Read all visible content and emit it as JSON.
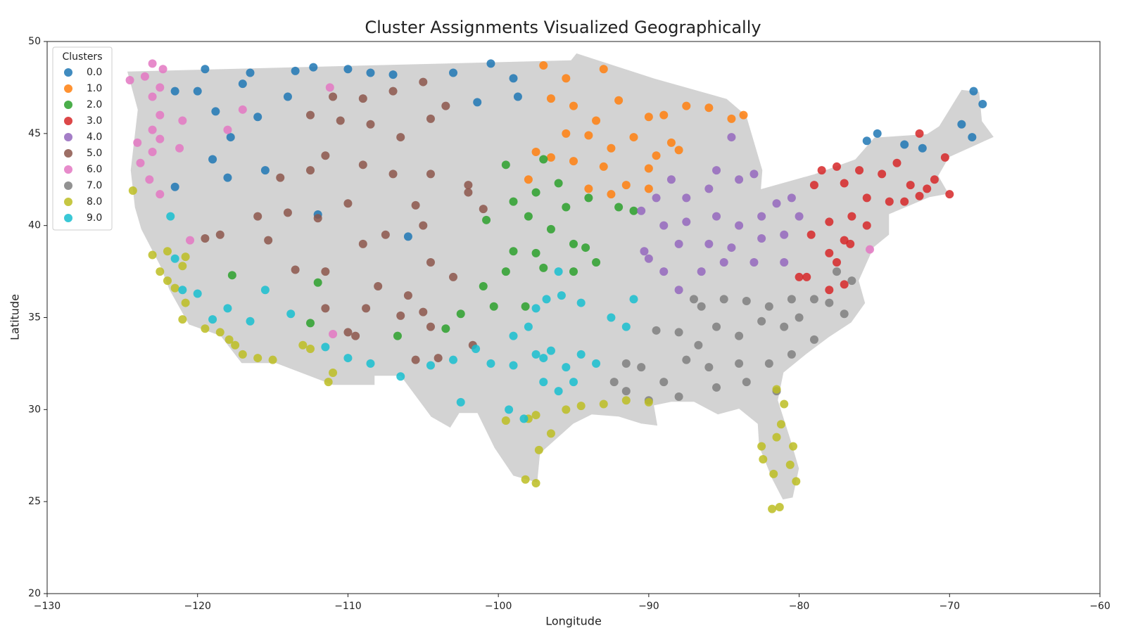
{
  "chart_data": {
    "type": "scatter",
    "title": "Cluster Assignments Visualized Geographically",
    "x_label": "Longitude",
    "y_label": "Latitude",
    "legend_title": "Clusters",
    "legend_loc": "upper left",
    "grid": false,
    "xlim": [
      -130,
      -60
    ],
    "ylim": [
      20,
      50
    ],
    "xticks": [
      {
        "value": -130,
        "label": "−130"
      },
      {
        "value": -120,
        "label": "−120"
      },
      {
        "value": -110,
        "label": "−110"
      },
      {
        "value": -100,
        "label": "−100"
      },
      {
        "value": -90,
        "label": "−90"
      },
      {
        "value": -80,
        "label": "−80"
      },
      {
        "value": -70,
        "label": "−70"
      },
      {
        "value": -60,
        "label": "−60"
      }
    ],
    "yticks": [
      20,
      25,
      30,
      35,
      40,
      45,
      50
    ],
    "series": [
      {
        "name": "0.0",
        "color": "#1f77b4",
        "x": [
          -121.5,
          -120,
          -119.5,
          -118.8,
          -117.8,
          -117,
          -116.5,
          -116,
          -115.5,
          -114,
          -113.5,
          -112.3,
          -110,
          -108.5,
          -107,
          -103,
          -100.5,
          -99,
          -98.7,
          -101.4,
          -119,
          -118,
          -121.5,
          -112,
          -106,
          -75.5,
          -74.8,
          -73,
          -71.8,
          -68.4,
          -67.8,
          -69.2,
          -68.5
        ],
        "y": [
          47.3,
          47.3,
          48.5,
          46.2,
          44.8,
          47.7,
          48.3,
          45.9,
          43,
          47,
          48.4,
          48.6,
          48.5,
          48.3,
          48.2,
          48.3,
          48.8,
          48,
          47,
          46.7,
          43.6,
          42.6,
          42.1,
          40.6,
          39.4,
          44.6,
          45,
          44.4,
          44.2,
          47.3,
          46.6,
          45.5,
          44.8
        ]
      },
      {
        "name": "1.0",
        "color": "#ff7f0e",
        "x": [
          -97,
          -95.5,
          -93,
          -96.5,
          -95,
          -93.5,
          -92,
          -90,
          -89,
          -87.5,
          -86,
          -84.5,
          -83.7,
          -95.5,
          -94,
          -92.5,
          -91,
          -89.5,
          -88,
          -90,
          -93,
          -95,
          -96.5,
          -94,
          -91.5,
          -90,
          -97.5,
          -98,
          -92.5,
          -88.5
        ],
        "y": [
          48.7,
          48,
          48.5,
          46.9,
          46.5,
          45.7,
          46.8,
          45.9,
          46,
          46.5,
          46.4,
          45.8,
          46,
          45,
          44.9,
          44.2,
          44.8,
          43.8,
          44.1,
          43.1,
          43.2,
          43.5,
          43.7,
          42,
          42.2,
          42,
          44,
          42.5,
          41.7,
          44.5
        ]
      },
      {
        "name": "2.0",
        "color": "#2ca02c",
        "x": [
          -99.5,
          -97,
          -96,
          -97.5,
          -99,
          -100.8,
          -98,
          -95.5,
          -94,
          -92,
          -91,
          -96.5,
          -95,
          -94.2,
          -97.5,
          -99,
          -99.5,
          -97,
          -95,
          -93.5,
          -101,
          -100.3,
          -98.2,
          -102.5,
          -103.5,
          -106.7,
          -117.7,
          -112,
          -112.5
        ],
        "y": [
          43.3,
          43.6,
          42.3,
          41.8,
          41.3,
          40.3,
          40.5,
          41,
          41.5,
          41,
          40.8,
          39.8,
          39,
          38.8,
          38.5,
          38.6,
          37.5,
          37.7,
          37.5,
          38,
          36.7,
          35.6,
          35.6,
          35.2,
          34.4,
          34,
          37.3,
          36.9,
          34.7
        ]
      },
      {
        "name": "3.0",
        "color": "#d62728",
        "x": [
          -72,
          -70.3,
          -71,
          -71.5,
          -72.6,
          -73.5,
          -74.5,
          -76,
          -77.5,
          -78.5,
          -79,
          -77,
          -75.5,
          -74,
          -73,
          -72,
          -70,
          -76.5,
          -78,
          -75.5,
          -77,
          -76.6,
          -78,
          -77.5,
          -79.5,
          -80,
          -78,
          -77,
          -79.2
        ],
        "y": [
          45,
          43.7,
          42.5,
          42,
          42.2,
          43.4,
          42.8,
          43,
          43.2,
          43,
          42.2,
          42.3,
          41.5,
          41.3,
          41.3,
          41.6,
          41.7,
          40.5,
          40.2,
          40,
          39.2,
          39,
          38.5,
          38,
          37.2,
          37.2,
          36.5,
          36.8,
          39.5
        ]
      },
      {
        "name": "4.0",
        "color": "#9467bd",
        "x": [
          -84.5,
          -85.5,
          -84,
          -83,
          -86,
          -87.5,
          -88.5,
          -89.5,
          -90.5,
          -89,
          -87.5,
          -85.5,
          -84,
          -82.5,
          -81.5,
          -80.5,
          -80,
          -81,
          -82.5,
          -84.5,
          -86,
          -88,
          -90.3,
          -89,
          -86.5,
          -85,
          -83,
          -81,
          -88,
          -90
        ],
        "y": [
          44.8,
          43,
          42.5,
          42.8,
          42,
          41.5,
          42.5,
          41.5,
          40.8,
          40,
          40.2,
          40.5,
          40,
          40.5,
          41.2,
          41.5,
          40.5,
          39.5,
          39.3,
          38.8,
          39,
          39,
          38.6,
          37.5,
          37.5,
          38,
          38,
          38,
          36.5,
          38.2
        ]
      },
      {
        "name": "5.0",
        "color": "#8c564b",
        "x": [
          -111,
          -109,
          -107,
          -105,
          -103.5,
          -104.5,
          -106.5,
          -108.5,
          -110.5,
          -112.5,
          -114.5,
          -112.5,
          -111.5,
          -109,
          -107,
          -105.5,
          -104.5,
          -102,
          -101,
          -102,
          -110,
          -112,
          -113.5,
          -111.5,
          -109,
          -107.5,
          -105,
          -104.5,
          -103,
          -106,
          -108,
          -106.5,
          -105,
          -108.8,
          -110,
          -109.5,
          -111.5,
          -118.5,
          -119.5,
          -116,
          -115.3,
          -114,
          -104,
          -105.5,
          -101.7,
          -104.5
        ],
        "y": [
          47,
          46.9,
          47.3,
          47.8,
          46.5,
          45.8,
          44.8,
          45.5,
          45.7,
          46,
          42.6,
          43,
          43.8,
          43.3,
          42.8,
          41.1,
          42.8,
          41.8,
          40.9,
          42.2,
          41.2,
          40.4,
          37.6,
          37.5,
          39,
          39.5,
          40,
          38,
          37.2,
          36.2,
          36.7,
          35.1,
          35.3,
          35.5,
          34.2,
          34,
          35.5,
          39.5,
          39.3,
          40.5,
          39.2,
          40.7,
          32.8,
          32.7,
          33.5,
          34.5
        ]
      },
      {
        "name": "6.0",
        "color": "#e377c2",
        "x": [
          -124.5,
          -123.5,
          -123,
          -122.3,
          -122.5,
          -123,
          -122.5,
          -123,
          -122.5,
          -123,
          -121.2,
          -121,
          -124,
          -123.2,
          -122.5,
          -123.8,
          -120.5,
          -117,
          -118,
          -111,
          -75.3,
          -111.2
        ],
        "y": [
          47.9,
          48.1,
          48.8,
          48.5,
          47.5,
          47,
          46,
          45.2,
          44.7,
          44,
          44.2,
          45.7,
          44.5,
          42.5,
          41.7,
          43.4,
          39.2,
          46.3,
          45.2,
          34.1,
          38.7,
          47.5
        ]
      },
      {
        "name": "7.0",
        "color": "#7f7f7f",
        "x": [
          -87,
          -86.5,
          -85,
          -83.5,
          -82,
          -80.5,
          -79,
          -78,
          -77,
          -80,
          -81,
          -82.5,
          -84,
          -85.5,
          -86.7,
          -88,
          -89.5,
          -90.5,
          -91.5,
          -89,
          -87.5,
          -86,
          -84,
          -83.5,
          -82,
          -80.5,
          -79,
          -81.5,
          -85.5,
          -88,
          -90,
          -91.5,
          -92.3,
          -76.5,
          -77.5
        ],
        "y": [
          36,
          35.6,
          36,
          35.9,
          35.6,
          36,
          36,
          35.8,
          35.2,
          35,
          34.5,
          34.8,
          34,
          34.5,
          33.5,
          34.2,
          34.3,
          32.3,
          32.5,
          31.5,
          32.7,
          32.3,
          32.5,
          31.5,
          32.5,
          33,
          33.8,
          31,
          31.2,
          30.7,
          30.5,
          31,
          31.5,
          37,
          37.5
        ]
      },
      {
        "name": "8.0",
        "color": "#bcbd22",
        "x": [
          -124.3,
          -123,
          -122.5,
          -122,
          -121.5,
          -121,
          -120.8,
          -122,
          -121,
          -119.5,
          -118.5,
          -117.9,
          -117.5,
          -117,
          -116,
          -115,
          -113,
          -112.5,
          -111.3,
          -111,
          -99.5,
          -98,
          -97.5,
          -96.5,
          -97.3,
          -98.2,
          -97.5,
          -95.5,
          -94.5,
          -93,
          -91.5,
          -90,
          -81,
          -81.5,
          -82.5,
          -82.4,
          -81.7,
          -80.2,
          -80.6,
          -80.4,
          -81.2,
          -81.8,
          -81.3,
          -81.5,
          -120.8
        ],
        "y": [
          41.9,
          38.4,
          37.5,
          37,
          36.6,
          37.8,
          38.3,
          38.6,
          34.9,
          34.4,
          34.2,
          33.8,
          33.5,
          33,
          32.8,
          32.7,
          33.5,
          33.3,
          31.5,
          32,
          29.4,
          29.5,
          29.7,
          28.7,
          27.8,
          26.2,
          26,
          30,
          30.2,
          30.3,
          30.5,
          30.4,
          30.3,
          28.5,
          28,
          27.3,
          26.5,
          26.1,
          27,
          28,
          29.2,
          24.6,
          24.7,
          31.1,
          35.8
        ]
      },
      {
        "name": "9.0",
        "color": "#17becf",
        "x": [
          -121.8,
          -121.5,
          -121,
          -120,
          -119,
          -118,
          -116.5,
          -115.5,
          -113.8,
          -111.5,
          -110,
          -108.5,
          -106.5,
          -104.5,
          -103,
          -101.5,
          -100.5,
          -99,
          -97.5,
          -97,
          -96.5,
          -95.5,
          -94.5,
          -93.5,
          -96.8,
          -95.8,
          -94.5,
          -92.5,
          -91.5,
          -97.5,
          -98,
          -99,
          -97,
          -96,
          -95,
          -98.3,
          -99.3,
          -102.5,
          -96,
          -91
        ],
        "y": [
          40.5,
          38.2,
          36.5,
          36.3,
          34.9,
          35.5,
          34.8,
          36.5,
          35.2,
          33.4,
          32.8,
          32.5,
          31.8,
          32.4,
          32.7,
          33.3,
          32.5,
          32.4,
          33,
          32.8,
          33.2,
          32.3,
          33,
          32.5,
          36,
          36.2,
          35.8,
          35,
          34.5,
          35.5,
          34.5,
          34,
          31.5,
          31,
          31.5,
          29.5,
          30,
          30.4,
          37.5,
          36
        ]
      }
    ]
  }
}
